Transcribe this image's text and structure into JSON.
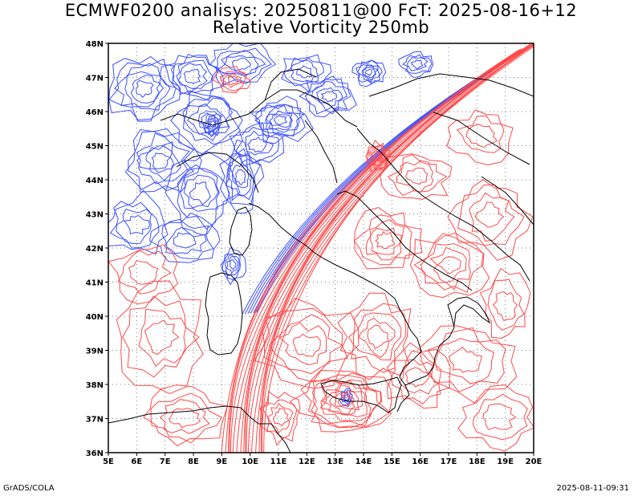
{
  "header": {
    "line1": "ECMWF0200 analisys: 20250811@00 FcT: 2025-08-16+12",
    "line2": "Relative Vorticity 250mb"
  },
  "map": {
    "lon_labels": [
      "5E",
      "6E",
      "7E",
      "8E",
      "9E",
      "10E",
      "11E",
      "12E",
      "13E",
      "14E",
      "15E",
      "16E",
      "17E",
      "18E",
      "19E",
      "20E"
    ],
    "lat_labels": [
      "48N",
      "47N",
      "46N",
      "45N",
      "44N",
      "43N",
      "42N",
      "41N",
      "40N",
      "39N",
      "38N",
      "37N",
      "36N"
    ],
    "lon_range": [
      5,
      20
    ],
    "lat_range": [
      36,
      48
    ],
    "colors": {
      "positive_contour": "#ff4a4a",
      "negative_contour": "#3a4fff",
      "coastline": "#000000",
      "grid": "#7f7f7f"
    },
    "grid_style": "dotted"
  },
  "footer": {
    "left": "GrADS/COLA",
    "right": "2025-08-11-09:31"
  }
}
